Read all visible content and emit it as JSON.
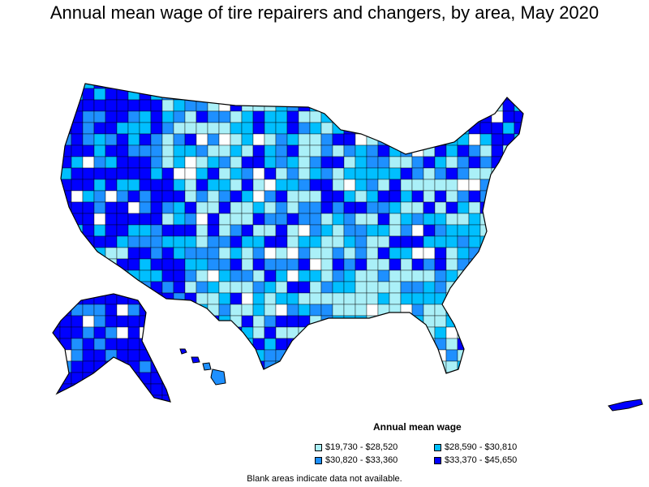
{
  "title": "Annual mean wage of tire repairers and changers, by area, May 2020",
  "legend": {
    "title": "Annual mean wage",
    "items": [
      {
        "label": "$19,730 - $28,520",
        "color": "#aaf0f8"
      },
      {
        "label": "$28,590 - $30,810",
        "color": "#00bfff"
      },
      {
        "label": "$30,820 - $33,360",
        "color": "#1e90ff"
      },
      {
        "label": "$33,370 - $45,650",
        "color": "#0000ff"
      }
    ]
  },
  "footnote": "Blank areas indicate data not available.",
  "colors": {
    "outline": "#000000",
    "blank": "#ffffff"
  }
}
